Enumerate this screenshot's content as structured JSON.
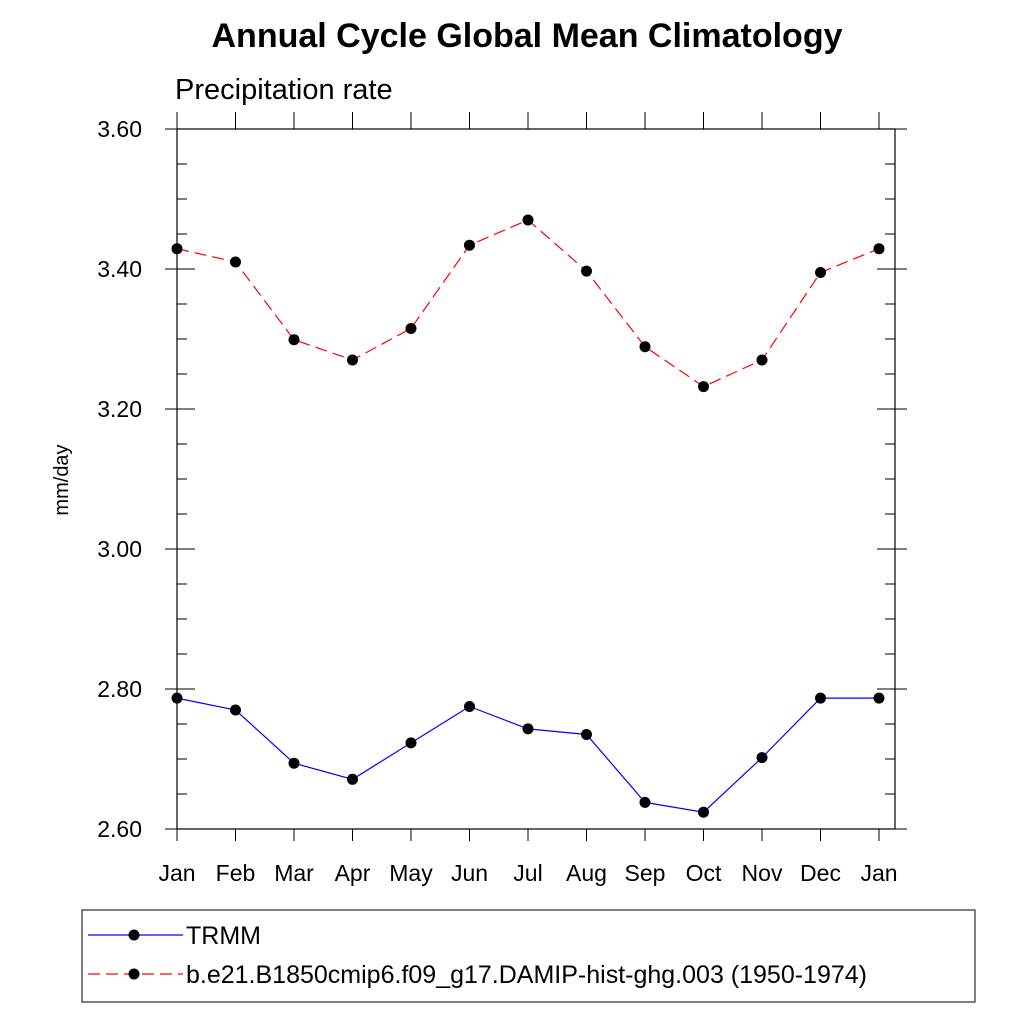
{
  "chart_data": {
    "type": "line",
    "title": "Annual Cycle Global Mean Climatology",
    "subtitle": "Precipitation rate",
    "xlabel": "",
    "ylabel": "mm/day",
    "categories": [
      "Jan",
      "Feb",
      "Mar",
      "Apr",
      "May",
      "Jun",
      "Jul",
      "Aug",
      "Sep",
      "Oct",
      "Nov",
      "Dec",
      "Jan"
    ],
    "ylim": [
      2.6,
      3.6
    ],
    "yticks": [
      "2.60",
      "2.80",
      "3.00",
      "3.20",
      "3.40",
      "3.60"
    ],
    "legend_position": "bottom",
    "grid": false,
    "series": [
      {
        "name": "TRMM",
        "color": "#0000ff",
        "line_style": "solid",
        "marker": "filled-circle",
        "values": [
          2.787,
          2.77,
          2.694,
          2.671,
          2.723,
          2.775,
          2.743,
          2.735,
          2.638,
          2.624,
          2.702,
          2.787,
          2.787
        ]
      },
      {
        "name": "b.e21.B1850cmip6.f09_g17.DAMIP-hist-ghg.003 (1950-1974)",
        "color": "#ff0000",
        "line_style": "dashed",
        "marker": "filled-circle",
        "values": [
          3.429,
          3.41,
          3.299,
          3.27,
          3.315,
          3.434,
          3.47,
          3.397,
          3.289,
          3.232,
          3.27,
          3.395,
          3.429
        ]
      }
    ]
  }
}
